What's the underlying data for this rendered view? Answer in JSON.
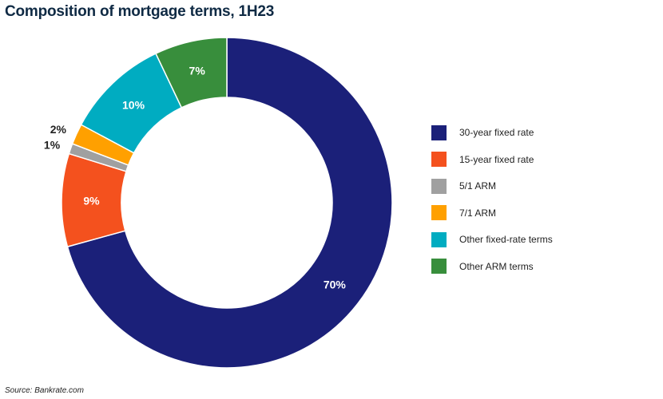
{
  "chart_data": {
    "type": "pie",
    "style": "donut",
    "title": "Composition of mortgage terms, 1H23",
    "source": "Source: Bankrate.com",
    "legend_position": "right",
    "slices": [
      {
        "label": "30-year fixed rate",
        "value": 70,
        "value_label": "70%",
        "color": "#1b2079"
      },
      {
        "label": "15-year fixed rate",
        "value": 9,
        "value_label": "9%",
        "color": "#f4511e"
      },
      {
        "label": "5/1 ARM",
        "value": 1,
        "value_label": "1%",
        "color": "#a0a0a0"
      },
      {
        "label": "7/1 ARM",
        "value": 2,
        "value_label": "2%",
        "color": "#ffa000"
      },
      {
        "label": "Other fixed-rate terms",
        "value": 10,
        "value_label": "10%",
        "color": "#00acc1"
      },
      {
        "label": "Other ARM terms",
        "value": 7,
        "value_label": "7%",
        "color": "#388e3c"
      }
    ]
  }
}
